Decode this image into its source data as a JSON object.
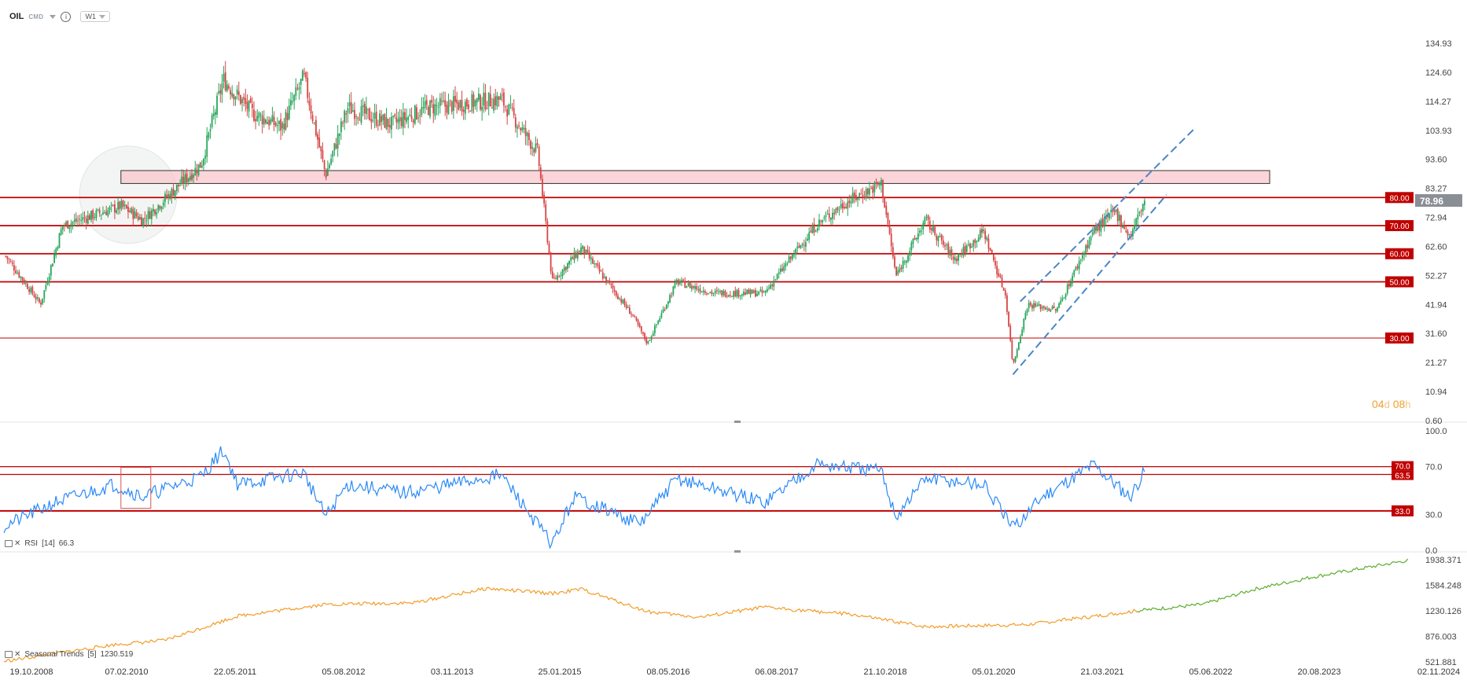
{
  "header": {
    "symbol": "OIL",
    "market": "CMD",
    "info_icon": "info-icon",
    "timeframe": "W1"
  },
  "countdown": {
    "days": "04",
    "day_unit": "d",
    "hours": "08",
    "hour_unit": "h"
  },
  "indicators": {
    "rsi_label": "RSI",
    "rsi_params": "[14]",
    "rsi_value": "66.3",
    "trend_label": "Seasonal Trends",
    "trend_params": "[5]",
    "trend_value": "1230.519"
  },
  "colors": {
    "bull": "#26a65b",
    "bear": "#d64545",
    "level": "#c00000",
    "rsi": "#2b8af7",
    "trend_hist": "#f39c28",
    "trend_future": "#5cae2e",
    "current_price": "#8a8f96",
    "zone_fill": "#f9c7cc"
  },
  "chart_data": [
    {
      "type": "candlestick",
      "name": "OIL weekly price",
      "y_ticks": [
        "134.93",
        "124.60",
        "114.27",
        "103.93",
        "93.60",
        "83.27",
        "72.94",
        "62.60",
        "52.27",
        "41.94",
        "31.60",
        "21.27",
        "10.94",
        "0.60"
      ],
      "x_ticks": [
        "19.10.2008",
        "07.02.2010",
        "22.05.2011",
        "05.08.2012",
        "03.11.2013",
        "25.01.2015",
        "08.05.2016",
        "06.08.2017",
        "21.10.2018",
        "05.01.2020",
        "21.03.2021",
        "05.06.2022",
        "20.08.2023",
        "02.11.2024"
      ],
      "ylim": [
        0.6,
        134.93
      ],
      "current_price": "78.96",
      "levels": [
        {
          "value": 80,
          "label": "80.00"
        },
        {
          "value": 70,
          "label": "70.00"
        },
        {
          "value": 60,
          "label": "60.00"
        },
        {
          "value": 50,
          "label": "50.00"
        },
        {
          "value": 30,
          "label": "30.00"
        }
      ],
      "resistance_zone": {
        "low": 85,
        "high": 89.6
      },
      "close_path": [
        {
          "x": "2008-10",
          "y": 60
        },
        {
          "x": "2009-03",
          "y": 42
        },
        {
          "x": "2009-06",
          "y": 70
        },
        {
          "x": "2010-02",
          "y": 77
        },
        {
          "x": "2010-05",
          "y": 72
        },
        {
          "x": "2011-01",
          "y": 92
        },
        {
          "x": "2011-04",
          "y": 122
        },
        {
          "x": "2011-08",
          "y": 110
        },
        {
          "x": "2011-12",
          "y": 105
        },
        {
          "x": "2012-03",
          "y": 123
        },
        {
          "x": "2012-06",
          "y": 88
        },
        {
          "x": "2012-09",
          "y": 112
        },
        {
          "x": "2013-03",
          "y": 106
        },
        {
          "x": "2013-08",
          "y": 112
        },
        {
          "x": "2014-06",
          "y": 115
        },
        {
          "x": "2014-11",
          "y": 96
        },
        {
          "x": "2015-01",
          "y": 50
        },
        {
          "x": "2015-05",
          "y": 62
        },
        {
          "x": "2015-12",
          "y": 38
        },
        {
          "x": "2016-02",
          "y": 28
        },
        {
          "x": "2016-06",
          "y": 50
        },
        {
          "x": "2016-11",
          "y": 46
        },
        {
          "x": "2017-06",
          "y": 46
        },
        {
          "x": "2018-01",
          "y": 70
        },
        {
          "x": "2018-05",
          "y": 78
        },
        {
          "x": "2018-10",
          "y": 85
        },
        {
          "x": "2018-12",
          "y": 52
        },
        {
          "x": "2019-04",
          "y": 72
        },
        {
          "x": "2019-08",
          "y": 58
        },
        {
          "x": "2019-12",
          "y": 68
        },
        {
          "x": "2020-03",
          "y": 45
        },
        {
          "x": "2020-04",
          "y": 20
        },
        {
          "x": "2020-06",
          "y": 42
        },
        {
          "x": "2020-10",
          "y": 40
        },
        {
          "x": "2021-03",
          "y": 68
        },
        {
          "x": "2021-06",
          "y": 75
        },
        {
          "x": "2021-08",
          "y": 66
        },
        {
          "x": "2021-10",
          "y": 79
        }
      ],
      "channel_lines": [
        {
          "from": {
            "x": "2020-04",
            "y": 17
          },
          "to": {
            "x": "2022-01",
            "y": 81
          }
        },
        {
          "from": {
            "x": "2020-05",
            "y": 43
          },
          "to": {
            "x": "2022-05",
            "y": 105
          }
        }
      ]
    },
    {
      "type": "line",
      "name": "RSI",
      "y_ticks": [
        "100.0",
        "70.0",
        "30.0",
        "0.0"
      ],
      "ylim": [
        0,
        100
      ],
      "levels": [
        {
          "value": 70,
          "label": "70.0"
        },
        {
          "value": 63.5,
          "label": "63.5"
        },
        {
          "value": 33,
          "label": "33.0"
        }
      ],
      "values": [
        {
          "x": "2008-10",
          "y": 20
        },
        {
          "x": "2009-05",
          "y": 40
        },
        {
          "x": "2010-01",
          "y": 55
        },
        {
          "x": "2010-05",
          "y": 45
        },
        {
          "x": "2011-01",
          "y": 62
        },
        {
          "x": "2011-04",
          "y": 84
        },
        {
          "x": "2011-06",
          "y": 55
        },
        {
          "x": "2012-03",
          "y": 65
        },
        {
          "x": "2012-06",
          "y": 28
        },
        {
          "x": "2012-09",
          "y": 55
        },
        {
          "x": "2013-05",
          "y": 48
        },
        {
          "x": "2014-06",
          "y": 63
        },
        {
          "x": "2014-09",
          "y": 38
        },
        {
          "x": "2015-01",
          "y": 5
        },
        {
          "x": "2015-04",
          "y": 45
        },
        {
          "x": "2016-01",
          "y": 22
        },
        {
          "x": "2016-06",
          "y": 60
        },
        {
          "x": "2017-06",
          "y": 40
        },
        {
          "x": "2018-01",
          "y": 72
        },
        {
          "x": "2018-10",
          "y": 66
        },
        {
          "x": "2018-12",
          "y": 28
        },
        {
          "x": "2019-04",
          "y": 60
        },
        {
          "x": "2019-12",
          "y": 55
        },
        {
          "x": "2020-04",
          "y": 18
        },
        {
          "x": "2020-08",
          "y": 45
        },
        {
          "x": "2021-03",
          "y": 72
        },
        {
          "x": "2021-08",
          "y": 45
        },
        {
          "x": "2021-10",
          "y": 66.3
        }
      ]
    },
    {
      "type": "line",
      "name": "Seasonal Trends",
      "y_ticks": [
        "1938.371",
        "1584.248",
        "1230.126",
        "876.003",
        "521.881"
      ],
      "ylim": [
        521.881,
        1938.371
      ],
      "values": [
        {
          "x": "2008-10",
          "y": 530
        },
        {
          "x": "2010-01",
          "y": 760
        },
        {
          "x": "2010-08",
          "y": 820
        },
        {
          "x": "2011-06",
          "y": 1160
        },
        {
          "x": "2012-06",
          "y": 1320
        },
        {
          "x": "2013-06",
          "y": 1340
        },
        {
          "x": "2014-04",
          "y": 1540
        },
        {
          "x": "2015-01",
          "y": 1470
        },
        {
          "x": "2015-05",
          "y": 1530
        },
        {
          "x": "2016-02",
          "y": 1220
        },
        {
          "x": "2016-09",
          "y": 1140
        },
        {
          "x": "2017-06",
          "y": 1280
        },
        {
          "x": "2018-06",
          "y": 1180
        },
        {
          "x": "2019-04",
          "y": 1010
        },
        {
          "x": "2020-06",
          "y": 1040
        },
        {
          "x": "2021-09",
          "y": 1230
        }
      ],
      "future_values": [
        {
          "x": "2021-09",
          "y": 1230
        },
        {
          "x": "2022-06",
          "y": 1320
        },
        {
          "x": "2023-01",
          "y": 1530
        },
        {
          "x": "2023-09",
          "y": 1700
        },
        {
          "x": "2024-10",
          "y": 1930
        }
      ]
    }
  ]
}
